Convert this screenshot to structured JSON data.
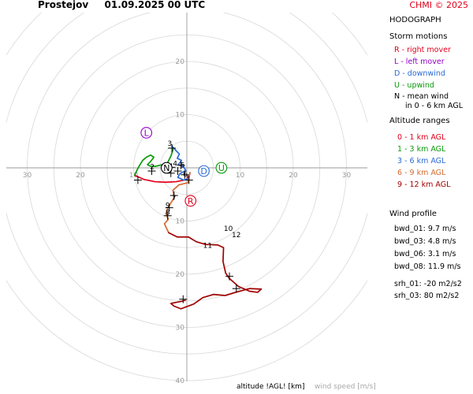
{
  "header": {
    "location": "Prostejov",
    "datetime": "01.09.2025 00 UTC",
    "copyright": "CHMI © 2025"
  },
  "legend": {
    "title": "HODOGRAPH",
    "storm_title": "Storm motions",
    "storm_items": [
      {
        "text": "R - right mover",
        "color": "#e0001a"
      },
      {
        "text": "L - left mover",
        "color": "#9400c8"
      },
      {
        "text": "D - downwind",
        "color": "#2a6ad8"
      },
      {
        "text": "U - upwind",
        "color": "#0a9a0a"
      },
      {
        "text": "N - mean wind",
        "color": "#000000"
      }
    ],
    "storm_note": "in 0 - 6 km AGL",
    "alt_title": "Altitude ranges",
    "alt_items": [
      {
        "text": "0 - 1 km AGL",
        "color": "#e0001a"
      },
      {
        "text": "1 - 3 km AGL",
        "color": "#0a9a0a"
      },
      {
        "text": "3 - 6 km AGL",
        "color": "#2a6ad8"
      },
      {
        "text": "6 - 9 km AGL",
        "color": "#d06a30"
      },
      {
        "text": "9 - 12 km AGL",
        "color": "#a00000"
      }
    ],
    "wind_title": "Wind profile",
    "wind_items": [
      "bwd_01: 9.7 m/s",
      "bwd_03: 4.8 m/s",
      "bwd_06: 3.1 m/s",
      "bwd_08: 11.9 m/s"
    ],
    "srh_items": [
      "srh_01: -20 m2/s2",
      "srh_03: 80 m2/s2"
    ]
  },
  "footer": {
    "altitude_label": "altitude !AGL! [km]",
    "speed_label": "wind speed [m/s]"
  },
  "chart_data": {
    "type": "line",
    "rings": [
      10,
      20,
      30,
      40
    ],
    "ring_step": 5,
    "x_ticks": [
      -30,
      -20,
      -10,
      10,
      20,
      30
    ],
    "y_ticks": [
      20,
      10,
      -10,
      -20,
      -30,
      -40
    ],
    "y_tick_labels": [
      "20",
      "10",
      "10",
      "20",
      "30",
      "40"
    ],
    "x_tick_labels": [
      "30",
      "20",
      "10",
      "10",
      "20",
      "30"
    ],
    "grid": true,
    "segments": [
      {
        "range": "0-1",
        "color": "#e0001a",
        "points": [
          [
            -9.8,
            -1.4
          ],
          [
            -8,
            -2.2
          ],
          [
            -6,
            -2.6
          ],
          [
            -4,
            -2.7
          ],
          [
            -2,
            -2.6
          ],
          [
            0,
            -2.2
          ],
          [
            0.2,
            -1.5
          ]
        ]
      },
      {
        "range": "1-3",
        "color": "#0a9a0a",
        "points": [
          [
            -9.8,
            -1.4
          ],
          [
            -9.3,
            -0.3
          ],
          [
            -8.8,
            0.6
          ],
          [
            -8.3,
            1.4
          ],
          [
            -7.6,
            2.0
          ],
          [
            -6.8,
            2.4
          ],
          [
            -6.2,
            2.0
          ],
          [
            -6.8,
            1.2
          ],
          [
            -7.4,
            0.6
          ],
          [
            -6.8,
            0.3
          ],
          [
            -5.8,
            0.3
          ],
          [
            -4.6,
            0.6
          ],
          [
            -3.6,
            1.0
          ],
          [
            -3.0,
            2.2
          ],
          [
            -2.6,
            3.4
          ],
          [
            -2.8,
            4.1
          ]
        ]
      },
      {
        "range": "3-6",
        "color": "#2a6ad8",
        "points": [
          [
            -2.8,
            4.1
          ],
          [
            -2.0,
            3.2
          ],
          [
            -1.4,
            2.6
          ],
          [
            -1.8,
            1.8
          ],
          [
            -1.0,
            1.4
          ],
          [
            -1.6,
            0.6
          ],
          [
            -0.6,
            0.2
          ],
          [
            -0.2,
            -0.5
          ],
          [
            -1.3,
            -1.1
          ],
          [
            -1.7,
            -1.8
          ],
          [
            -0.6,
            -2.3
          ],
          [
            0.3,
            -2.0
          ],
          [
            0.6,
            -0.9
          ]
        ]
      },
      {
        "range": "6-9",
        "color": "#d06a30",
        "points": [
          [
            0.6,
            -0.9
          ],
          [
            0.2,
            -2.8
          ],
          [
            -1.5,
            -3.2
          ],
          [
            -2.6,
            -4.2
          ],
          [
            -2.4,
            -5.6
          ],
          [
            -3.0,
            -6.6
          ],
          [
            -3.6,
            -7.6
          ],
          [
            -3.9,
            -8.6
          ],
          [
            -3.5,
            -9.7
          ],
          [
            -4.2,
            -10.5
          ],
          [
            -3.9,
            -11.2
          ],
          [
            -3.4,
            -12.2
          ]
        ]
      },
      {
        "range": "9-12",
        "color": "#a00000",
        "points": [
          [
            -3.4,
            -12.2
          ],
          [
            -1.8,
            -13.0
          ],
          [
            0.3,
            -13.0
          ],
          [
            1.8,
            -13.9
          ],
          [
            3.5,
            -14.4
          ],
          [
            5.8,
            -14.5
          ],
          [
            6.9,
            -15.0
          ],
          [
            6.8,
            -17.6
          ],
          [
            7.3,
            -19.8
          ],
          [
            8.0,
            -20.8
          ],
          [
            9.7,
            -22.3
          ],
          [
            11.8,
            -23.2
          ],
          [
            13.3,
            -23.4
          ],
          [
            14.0,
            -22.8
          ],
          [
            11.8,
            -22.7
          ],
          [
            9.2,
            -23.4
          ],
          [
            7.2,
            -24.0
          ],
          [
            5.0,
            -23.8
          ],
          [
            3.0,
            -24.4
          ],
          [
            1.3,
            -25.6
          ],
          [
            -1.1,
            -26.5
          ],
          [
            -2.4,
            -26.0
          ],
          [
            -3.0,
            -25.5
          ],
          [
            -2.1,
            -25.3
          ],
          [
            -1.0,
            -25.1
          ],
          [
            -0.3,
            -24.9
          ]
        ]
      }
    ],
    "crosses": [
      [
        -9.2,
        -2.3
      ],
      [
        -6.6,
        -0.6
      ],
      [
        -3.0,
        -1.0
      ],
      [
        -2.9,
        0.1
      ],
      [
        -2.8,
        3.7
      ],
      [
        -1.7,
        -0.6
      ],
      [
        -1.1,
        0.5
      ],
      [
        -0.4,
        -1.3
      ],
      [
        0.4,
        -2.3
      ],
      [
        -2.4,
        -5.2
      ],
      [
        -3.3,
        -7.5
      ],
      [
        -3.6,
        -9.0
      ],
      [
        -0.7,
        -24.7
      ],
      [
        8.0,
        -20.4
      ],
      [
        9.3,
        -22.7
      ]
    ],
    "altitude_labels": [
      {
        "text": "2",
        "x": -6.5,
        "y": 0.2
      },
      {
        "text": "3",
        "x": -3.2,
        "y": 4.6
      },
      {
        "text": "4",
        "x": -2.2,
        "y": 0.8
      },
      {
        "text": "5",
        "x": -0.8,
        "y": 0.5
      },
      {
        "text": "6",
        "x": -0.3,
        "y": -1.2
      },
      {
        "text": "7",
        "x": -2.4,
        "y": -5.6
      },
      {
        "text": "8",
        "x": -3.6,
        "y": -8.4
      },
      {
        "text": "9",
        "x": -3.6,
        "y": -7.0
      },
      {
        "text": "10",
        "x": 7.8,
        "y": -11.4
      },
      {
        "text": "11",
        "x": 3.9,
        "y": -14.6
      },
      {
        "text": "12",
        "x": 9.3,
        "y": -12.6
      }
    ],
    "storm_motions": [
      {
        "label": "R",
        "x": 0.7,
        "y": -6.2,
        "color": "#e0001a"
      },
      {
        "label": "L",
        "x": -7.6,
        "y": 6.6,
        "color": "#9400c8"
      },
      {
        "label": "D",
        "x": 3.2,
        "y": -0.6,
        "color": "#2a6ad8"
      },
      {
        "label": "U",
        "x": 6.5,
        "y": 0.0,
        "color": "#0a9a0a"
      },
      {
        "label": "N",
        "x": -3.8,
        "y": 0.0,
        "color": "#000000"
      }
    ]
  }
}
